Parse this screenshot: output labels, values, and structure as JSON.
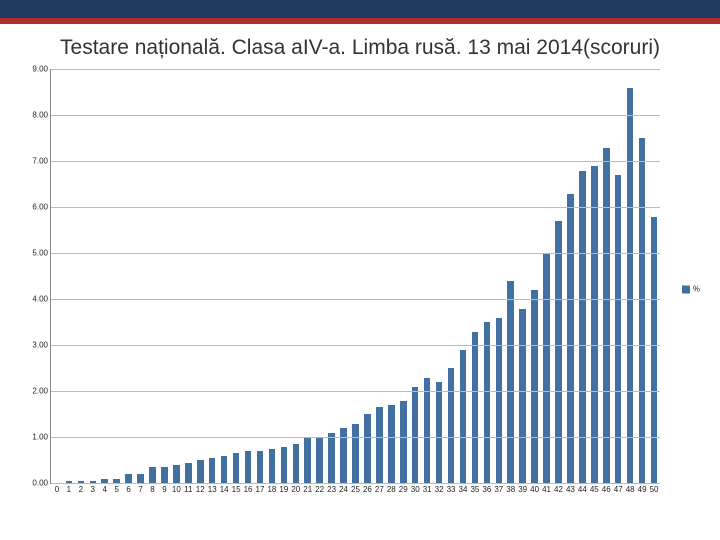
{
  "title": "Testare națională. Clasa aIV-a. Limba rusă. 13 mai 2014(scoruri)",
  "chart": {
    "type": "bar",
    "categories": [
      0,
      1,
      2,
      3,
      4,
      5,
      6,
      7,
      8,
      9,
      10,
      11,
      12,
      13,
      14,
      15,
      16,
      17,
      18,
      19,
      20,
      21,
      22,
      23,
      24,
      25,
      26,
      27,
      28,
      29,
      30,
      31,
      32,
      33,
      34,
      35,
      36,
      37,
      38,
      39,
      40,
      41,
      42,
      43,
      44,
      45,
      46,
      47,
      48,
      49,
      50
    ],
    "values": [
      0.0,
      0.05,
      0.05,
      0.05,
      0.1,
      0.1,
      0.2,
      0.2,
      0.35,
      0.35,
      0.4,
      0.45,
      0.5,
      0.55,
      0.6,
      0.65,
      0.7,
      0.7,
      0.75,
      0.8,
      0.85,
      1.0,
      1.0,
      1.1,
      1.2,
      1.3,
      1.5,
      1.65,
      1.7,
      1.8,
      2.1,
      2.3,
      2.2,
      2.5,
      2.9,
      3.3,
      3.5,
      3.6,
      4.4,
      3.8,
      4.2,
      5.0,
      5.7,
      6.3,
      6.8,
      6.9,
      7.3,
      6.7,
      8.6,
      7.5,
      5.8
    ],
    "bar_color": "#4270a0",
    "grid_color": "#bbbbbb",
    "axis_color": "#888888",
    "background_color": "#ffffff",
    "ylim": [
      0,
      9
    ],
    "ytick_step": 1,
    "ytick_labels": [
      "0.00",
      "1.00",
      "2.00",
      "3.00",
      "4.00",
      "5.00",
      "6.00",
      "7.00",
      "8.00",
      "9.00"
    ],
    "bar_width_ratio": 0.55,
    "label_fontsize": 8,
    "title_fontsize": 21
  },
  "legend": {
    "label": "%",
    "color": "#4270a0"
  }
}
